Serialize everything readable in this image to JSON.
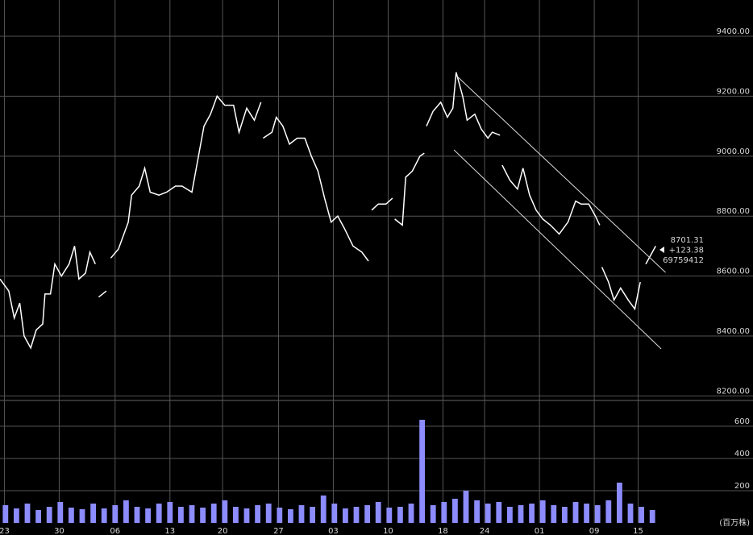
{
  "chart_data": [
    {
      "type": "line",
      "x": [
        0.0,
        0.8,
        1.3,
        1.8,
        2.2,
        2.8,
        3.3,
        3.9,
        4.1,
        4.6,
        5.0,
        5.6,
        6.3,
        6.8,
        7.2,
        7.8,
        8.2,
        8.7,
        null,
        9.0,
        9.7,
        null,
        10.1,
        10.8,
        11.7,
        12.0,
        12.7,
        13.2,
        13.7,
        14.5,
        15.2,
        16.0,
        16.6,
        17.5,
        18.1,
        18.6,
        19.2,
        19.8,
        20.5,
        21.3,
        21.8,
        22.5,
        23.2,
        23.8,
        null,
        24.0,
        24.8,
        25.2,
        25.8,
        26.4,
        27.1,
        27.8,
        28.4,
        29.0,
        29.6,
        30.2,
        30.8,
        31.4,
        32.2,
        33.0,
        33.6,
        null,
        33.9,
        34.5,
        35.2,
        35.8,
        null,
        36.0,
        36.7,
        37.0,
        37.6,
        38.3,
        38.7,
        null,
        38.9,
        39.5,
        40.2,
        40.8,
        41.3,
        41.6,
        42.2,
        42.6,
        43.3,
        43.9,
        44.5,
        44.9,
        45.6,
        null,
        45.8,
        46.5,
        47.2,
        47.7,
        48.3,
        48.9,
        49.5,
        50.2,
        51.0,
        51.8,
        52.5,
        53.0,
        53.7,
        54.3,
        54.7,
        null,
        54.9,
        55.5,
        56.0,
        56.6,
        57.3,
        57.9,
        58.4,
        null,
        58.9,
        59.5,
        59.8
      ],
      "values": [
        8590,
        8550,
        8460,
        8510,
        8400,
        8360,
        8420,
        8440,
        8540,
        8540,
        8640,
        8600,
        8640,
        8700,
        8590,
        8610,
        8680,
        8640,
        null,
        8530,
        8550,
        null,
        8660,
        8690,
        8780,
        8870,
        8900,
        8960,
        8880,
        8870,
        8880,
        8900,
        8900,
        8880,
        9000,
        9100,
        9140,
        9200,
        9170,
        9170,
        9080,
        9160,
        9120,
        9180,
        null,
        9060,
        9080,
        9130,
        9100,
        9040,
        9060,
        9060,
        9000,
        8950,
        8860,
        8780,
        8800,
        8760,
        8700,
        8680,
        8650,
        null,
        8820,
        8840,
        8840,
        8860,
        null,
        8790,
        8770,
        8930,
        8950,
        9000,
        9010,
        null,
        9100,
        9150,
        9180,
        9130,
        9160,
        9280,
        9200,
        9120,
        9140,
        9090,
        9060,
        9080,
        9070,
        null,
        8970,
        8920,
        8890,
        8960,
        8870,
        8820,
        8790,
        8770,
        8740,
        8780,
        8850,
        8840,
        8840,
        8800,
        8770,
        null,
        8630,
        8580,
        8520,
        8560,
        8520,
        8490,
        8580,
        null,
        8640,
        8680,
        8700
      ],
      "color": "#ffffff",
      "xlim": [
        0,
        65
      ],
      "ylim": [
        8185,
        9521
      ],
      "yticks": [
        {
          "value": 8200,
          "label": "8200.00"
        },
        {
          "value": 8400,
          "label": "8400.00"
        },
        {
          "value": 8600,
          "label": "8600.00"
        },
        {
          "value": 8800,
          "label": "8800.00"
        },
        {
          "value": 9000,
          "label": "9000.00"
        },
        {
          "value": 9200,
          "label": "9200.00"
        },
        {
          "value": 9400,
          "label": "9400.00"
        }
      ],
      "xticks": [
        {
          "value": 0.4,
          "label": "23"
        },
        {
          "value": 5.4,
          "label": "30"
        },
        {
          "value": 10.5,
          "label": "06"
        },
        {
          "value": 15.5,
          "label": "13"
        },
        {
          "value": 20.3,
          "label": "20"
        },
        {
          "value": 25.4,
          "label": "27"
        },
        {
          "value": 30.4,
          "label": "03"
        },
        {
          "value": 35.4,
          "label": "10"
        },
        {
          "value": 40.4,
          "label": "18"
        },
        {
          "value": 44.2,
          "label": "24"
        },
        {
          "value": 49.2,
          "label": "01"
        },
        {
          "value": 54.2,
          "label": "09"
        },
        {
          "value": 58.2,
          "label": "15"
        }
      ],
      "grid": true,
      "trendlines": [
        {
          "x": [
            41.7,
            60.7
          ],
          "y": [
            9266,
            8612
          ]
        },
        {
          "x": [
            41.4,
            60.3
          ],
          "y": [
            9021,
            8357
          ]
        }
      ],
      "annotations": [
        "8701.31",
        "+123.38",
        "69759412"
      ]
    },
    {
      "type": "bar",
      "x": [
        0.5,
        1.5,
        2.5,
        3.5,
        4.5,
        5.5,
        6.5,
        7.5,
        8.5,
        9.5,
        10.5,
        11.5,
        12.5,
        13.5,
        14.5,
        15.5,
        16.5,
        17.5,
        18.5,
        19.5,
        20.5,
        21.5,
        22.5,
        23.5,
        24.5,
        25.5,
        26.5,
        27.5,
        28.5,
        29.5,
        30.5,
        31.5,
        32.5,
        33.5,
        34.5,
        35.5,
        36.5,
        37.5,
        38.5,
        39.5,
        40.5,
        41.5,
        42.5,
        43.5,
        44.5,
        45.5,
        46.5,
        47.5,
        48.5,
        49.5,
        50.5,
        51.5,
        52.5,
        53.5,
        54.5,
        55.5,
        56.5,
        57.5,
        58.5,
        59.5
      ],
      "values": [
        110,
        90,
        120,
        80,
        100,
        130,
        95,
        85,
        120,
        90,
        110,
        140,
        100,
        90,
        120,
        130,
        100,
        110,
        95,
        120,
        140,
        100,
        90,
        110,
        120,
        95,
        85,
        110,
        100,
        170,
        120,
        90,
        100,
        110,
        130,
        95,
        100,
        120,
        640,
        110,
        130,
        150,
        200,
        140,
        120,
        130,
        100,
        110,
        120,
        140,
        110,
        100,
        130,
        120,
        110,
        140,
        250,
        120,
        100,
        80
      ],
      "color": "#8c8cff",
      "xlim": [
        0,
        65
      ],
      "ylim": [
        0,
        760
      ],
      "yticks": [
        200,
        400,
        600
      ],
      "unit_label": "(百万株)",
      "grid": true
    }
  ]
}
